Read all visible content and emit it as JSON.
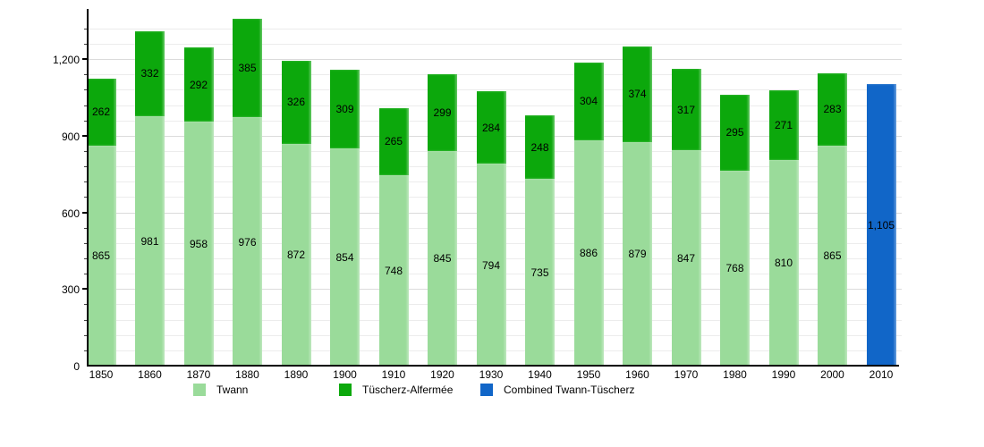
{
  "chart_data": {
    "type": "bar",
    "stacked": true,
    "categories": [
      "1850",
      "1860",
      "1870",
      "1880",
      "1890",
      "1900",
      "1910",
      "1920",
      "1930",
      "1940",
      "1950",
      "1960",
      "1970",
      "1980",
      "1990",
      "2000",
      "2010"
    ],
    "series": [
      {
        "name": "Twann",
        "color": "#9ADB9A",
        "values": [
          865,
          981,
          958,
          976,
          872,
          854,
          748,
          845,
          794,
          735,
          886,
          879,
          847,
          768,
          810,
          865,
          null
        ]
      },
      {
        "name": "Tüscherz-Alfermée",
        "color": "#0CA80C",
        "values": [
          262,
          332,
          292,
          385,
          326,
          309,
          265,
          299,
          284,
          248,
          304,
          374,
          317,
          295,
          271,
          283,
          null
        ]
      },
      {
        "name": "Combined Twann-Tüscherz",
        "color": "#1166C8",
        "values": [
          null,
          null,
          null,
          null,
          null,
          null,
          null,
          null,
          null,
          null,
          null,
          null,
          null,
          null,
          null,
          null,
          1105
        ]
      }
    ],
    "yticks": [
      0,
      300,
      600,
      900,
      1200
    ],
    "ylim": [
      0,
      1400
    ],
    "minor_grid_step": 60,
    "grid": true,
    "legend_position": "bottom",
    "axis_color": "#000000",
    "minor_grid_color": "#ececec",
    "major_grid_color": "#dbdbdb"
  }
}
